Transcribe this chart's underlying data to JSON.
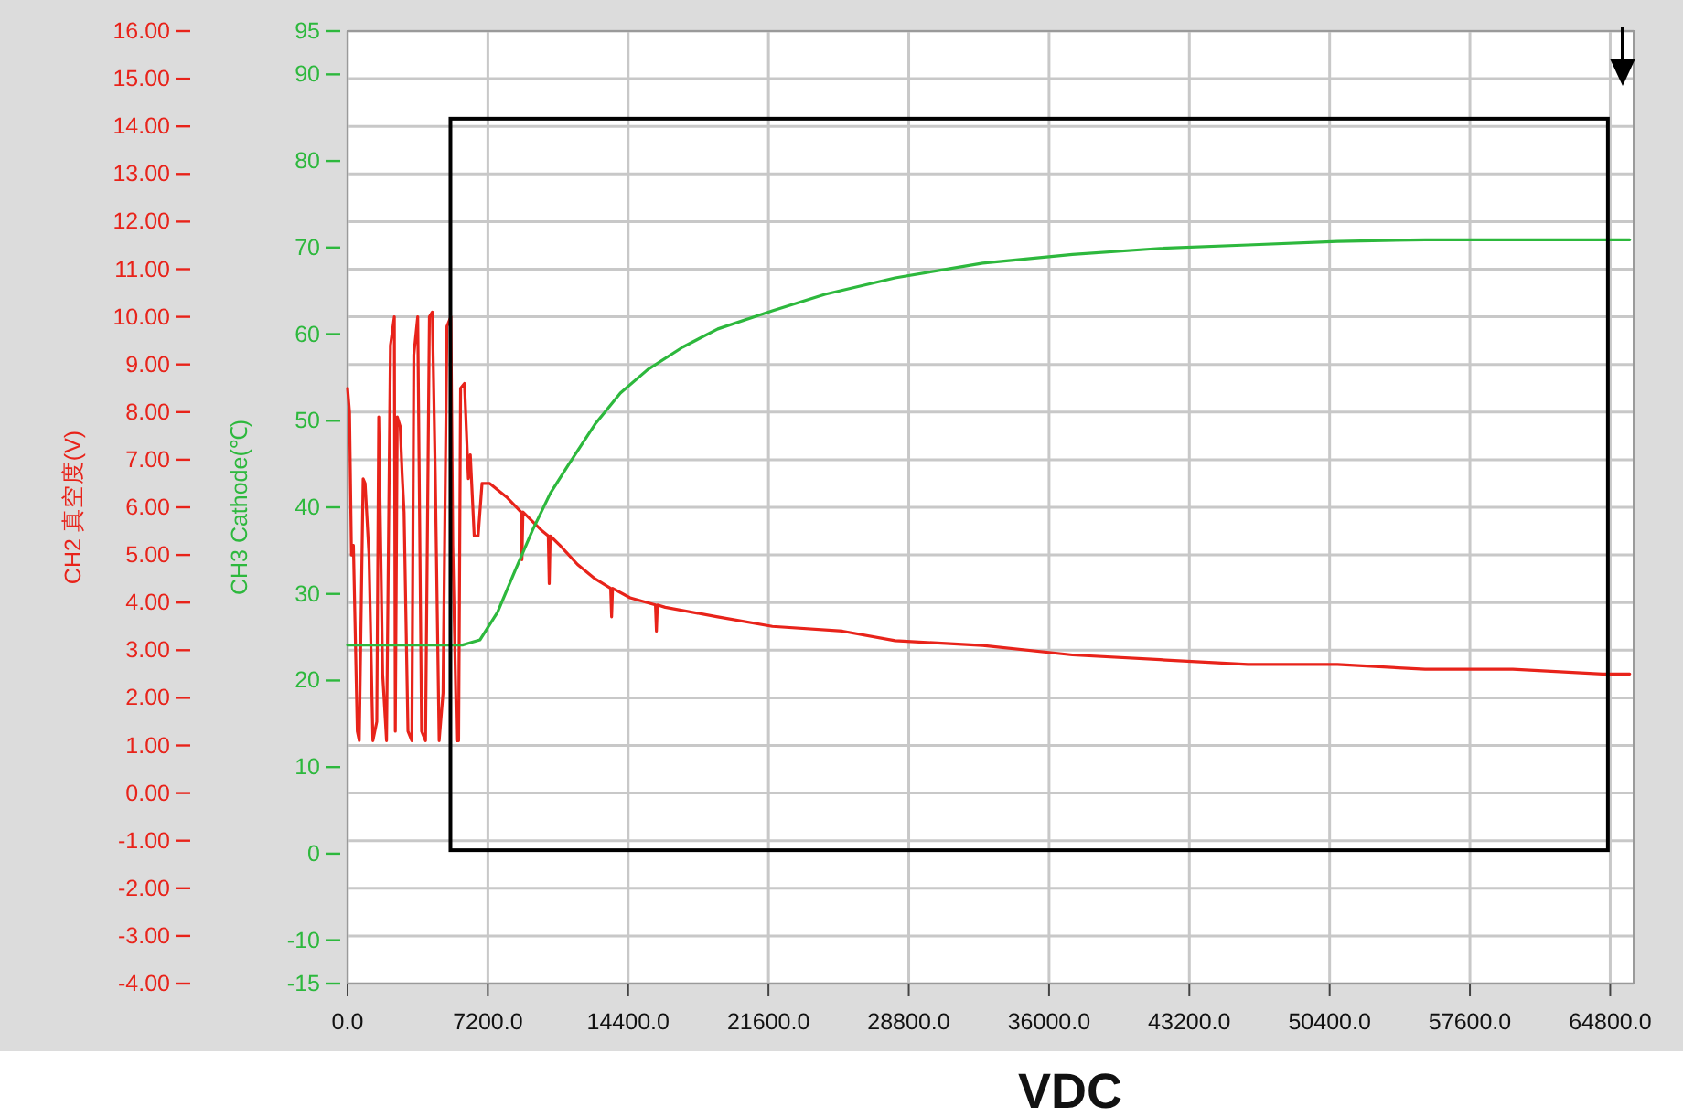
{
  "chart_data": {
    "type": "line",
    "xlabel": "VDC",
    "ylabel": "CH2 真空度(V)",
    "y2label": "CH3 Cathode(℃)",
    "grid": true,
    "xlim": [
      0,
      66000
    ],
    "xticks": [
      {
        "value": 0,
        "label": "0.0"
      },
      {
        "value": 7200,
        "label": "7200.0"
      },
      {
        "value": 14400,
        "label": "14400.0"
      },
      {
        "value": 21600,
        "label": "21600.0"
      },
      {
        "value": 28800,
        "label": "28800.0"
      },
      {
        "value": 36000,
        "label": "36000.0"
      },
      {
        "value": 43200,
        "label": "43200.0"
      },
      {
        "value": 50400,
        "label": "50400.0"
      },
      {
        "value": 57600,
        "label": "57600.0"
      },
      {
        "value": 64800,
        "label": "64800.0"
      }
    ],
    "ylim": [
      -4,
      16
    ],
    "yticks": [
      {
        "value": -4,
        "label": "-4.00"
      },
      {
        "value": -3,
        "label": "-3.00"
      },
      {
        "value": -2,
        "label": "-2.00"
      },
      {
        "value": -1,
        "label": "-1.00"
      },
      {
        "value": 0,
        "label": "0.00"
      },
      {
        "value": 1,
        "label": "1.00"
      },
      {
        "value": 2,
        "label": "2.00"
      },
      {
        "value": 3,
        "label": "3.00"
      },
      {
        "value": 4,
        "label": "4.00"
      },
      {
        "value": 5,
        "label": "5.00"
      },
      {
        "value": 6,
        "label": "6.00"
      },
      {
        "value": 7,
        "label": "7.00"
      },
      {
        "value": 8,
        "label": "8.00"
      },
      {
        "value": 9,
        "label": "9.00"
      },
      {
        "value": 10,
        "label": "10.00"
      },
      {
        "value": 11,
        "label": "11.00"
      },
      {
        "value": 12,
        "label": "12.00"
      },
      {
        "value": 13,
        "label": "13.00"
      },
      {
        "value": 14,
        "label": "14.00"
      },
      {
        "value": 15,
        "label": "15.00"
      },
      {
        "value": 16,
        "label": "16.00"
      }
    ],
    "y2lim": [
      -15,
      95
    ],
    "y2ticks": [
      -15,
      -10,
      0,
      10,
      20,
      30,
      40,
      50,
      60,
      70,
      80,
      90,
      95
    ],
    "series": [
      {
        "color": "#e8231a",
        "x": [
          0,
          100,
          200,
          300,
          500,
          600,
          800,
          900,
          1100,
          1300,
          1500,
          1600,
          1800,
          2000,
          2200,
          2400,
          2450,
          2550,
          2700,
          2800,
          2900,
          3100,
          3300,
          3400,
          3600,
          3800,
          4000,
          4200,
          4350,
          4500,
          4700,
          4900,
          5100,
          5300,
          5400,
          5600,
          5700,
          5800,
          6000,
          6200,
          6300,
          6500,
          6700,
          6900,
          7300,
          8200,
          8900,
          8950,
          9000,
          10000,
          10300,
          10350,
          10400,
          10900,
          11800,
          12700,
          13500,
          13550,
          13600,
          14500,
          15800,
          15850,
          15900,
          16300,
          19000,
          21800,
          25400,
          28100,
          32600,
          37200,
          41700,
          46200,
          50800,
          55300,
          59800,
          64400,
          65800
        ],
        "values": [
          8.5,
          8.0,
          5.0,
          5.2,
          1.3,
          1.1,
          6.6,
          6.5,
          5.0,
          1.1,
          1.5,
          7.9,
          2.5,
          1.1,
          9.4,
          10.0,
          1.3,
          7.9,
          7.7,
          6.7,
          5.9,
          1.3,
          1.1,
          9.2,
          10.0,
          1.3,
          1.1,
          10.0,
          10.1,
          6.7,
          1.1,
          2.1,
          9.8,
          10.0,
          5.2,
          1.1,
          1.1,
          8.5,
          8.6,
          6.6,
          7.1,
          5.4,
          5.4,
          6.5,
          6.5,
          6.2,
          5.9,
          4.9,
          5.9,
          5.5,
          5.4,
          4.4,
          5.4,
          5.2,
          4.8,
          4.5,
          4.3,
          3.7,
          4.3,
          4.1,
          3.95,
          3.4,
          3.95,
          3.9,
          3.7,
          3.5,
          3.4,
          3.2,
          3.1,
          2.9,
          2.8,
          2.7,
          2.7,
          2.6,
          2.6,
          2.5,
          2.5
        ]
      },
      {
        "color": "#2db83d",
        "axis": "y2",
        "x": [
          0,
          3000,
          5900,
          6800,
          7700,
          8600,
          9500,
          10400,
          11300,
          12700,
          14000,
          15400,
          17200,
          19000,
          21800,
          24500,
          28100,
          32600,
          37200,
          41700,
          46200,
          50800,
          55300,
          59800,
          64400,
          65800
        ],
        "values": [
          24.1,
          24.1,
          24.1,
          24.7,
          27.9,
          32.7,
          37.4,
          41.6,
          44.8,
          49.6,
          53.2,
          55.9,
          58.5,
          60.6,
          62.7,
          64.6,
          66.5,
          68.2,
          69.2,
          69.9,
          70.3,
          70.7,
          70.9,
          70.9,
          70.9,
          70.9
        ]
      }
    ]
  }
}
